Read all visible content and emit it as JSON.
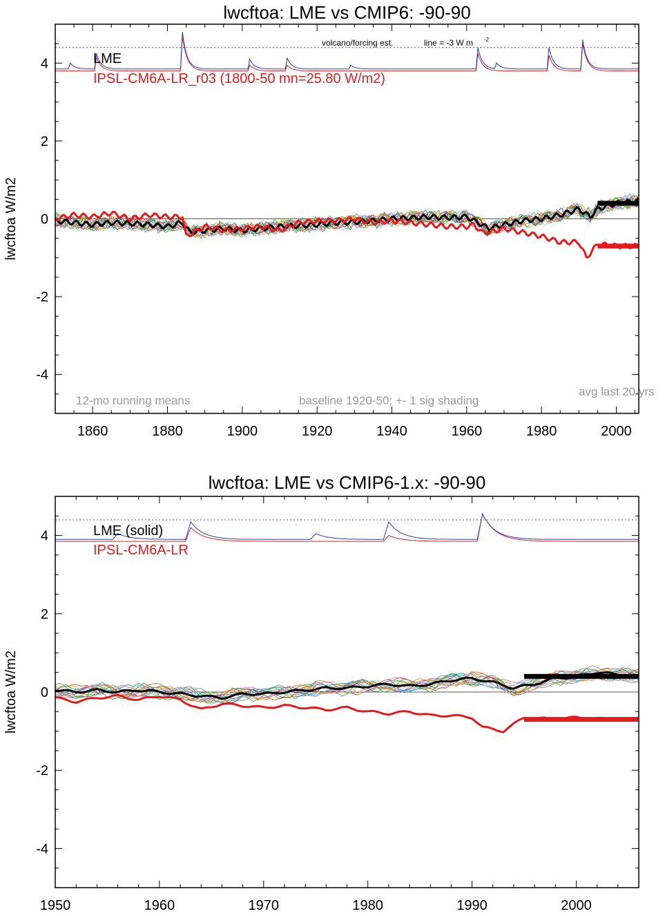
{
  "chart_data": [
    {
      "type": "line",
      "title": "lwcftoa: LME vs CMIP6: -90-90",
      "ylabel": "lwcftoa W/m2",
      "xlim": [
        1850,
        2006
      ],
      "ylim": [
        -5,
        5
      ],
      "xticks": [
        1860,
        1880,
        1900,
        1920,
        1940,
        1960,
        1980,
        2000
      ],
      "yticks": [
        -4,
        -2,
        0,
        2,
        4
      ],
      "grid": false,
      "legend": {
        "placement": "top-left",
        "entries": [
          {
            "label": "LME",
            "color": "#000000"
          },
          {
            "label": "IPSL-CM6A-LR_r03 (1800-50 mn=25.80 W/m2)",
            "color": "#e41a1c"
          }
        ]
      },
      "annotations": {
        "volcano_label": "volcano/forcing est.",
        "line_label": "line = -3 W m",
        "line_label_sup": "-2",
        "bottom_left": "12-mo running means",
        "bottom_mid": "baseline 1920-50; +- 1 sig shading",
        "bottom_right": "avg last 20 yrs"
      },
      "reference_line_y": 4.4,
      "zero_line_y": 0,
      "forcing": {
        "baseline": 3.85,
        "blue_peaks": [
          [
            1854,
            0.15
          ],
          [
            1861,
            0.4
          ],
          [
            1884,
            0.95
          ],
          [
            1902,
            0.25
          ],
          [
            1912,
            0.28
          ],
          [
            1929,
            0.1
          ],
          [
            1963,
            0.55
          ],
          [
            1968,
            0.15
          ],
          [
            1982,
            0.55
          ],
          [
            1991,
            0.75
          ]
        ],
        "red_peaks": [
          [
            1861,
            0.35
          ],
          [
            1884,
            0.9
          ],
          [
            1902,
            0.15
          ],
          [
            1912,
            0.15
          ],
          [
            1963,
            0.45
          ],
          [
            1982,
            0.4
          ],
          [
            1991,
            0.7
          ]
        ],
        "red_offset": -0.05
      },
      "series": [
        {
          "name": "LME",
          "color": "#000000",
          "x": [
            1850,
            1855,
            1860,
            1865,
            1870,
            1875,
            1880,
            1884,
            1886,
            1890,
            1895,
            1900,
            1905,
            1910,
            1915,
            1920,
            1925,
            1930,
            1935,
            1940,
            1945,
            1950,
            1955,
            1960,
            1963,
            1966,
            1970,
            1975,
            1980,
            1985,
            1990,
            1993,
            1995,
            2000,
            2005
          ],
          "y": [
            -0.05,
            -0.1,
            -0.15,
            -0.1,
            -0.12,
            -0.15,
            -0.2,
            -0.1,
            -0.35,
            -0.3,
            -0.25,
            -0.3,
            -0.25,
            -0.2,
            -0.18,
            -0.15,
            -0.1,
            -0.08,
            -0.05,
            0.0,
            0.02,
            0.05,
            0.03,
            0.05,
            -0.1,
            -0.25,
            -0.15,
            -0.05,
            0.0,
            0.1,
            0.25,
            0.05,
            0.25,
            0.4,
            0.45
          ]
        },
        {
          "name": "IPSL-CM6A-LR_r03",
          "color": "#e41a1c",
          "x": [
            1850,
            1855,
            1860,
            1865,
            1870,
            1875,
            1880,
            1884,
            1885,
            1890,
            1895,
            1900,
            1905,
            1910,
            1915,
            1920,
            1925,
            1930,
            1935,
            1940,
            1945,
            1950,
            1955,
            1960,
            1962,
            1964,
            1966,
            1970,
            1975,
            1980,
            1985,
            1990,
            1992,
            1995,
            2000,
            2005
          ],
          "y": [
            0.0,
            0.1,
            0.05,
            0.15,
            0.0,
            0.1,
            0.05,
            0.05,
            -0.45,
            -0.2,
            -0.3,
            -0.25,
            -0.2,
            -0.3,
            -0.1,
            -0.05,
            -0.05,
            0.0,
            -0.1,
            -0.05,
            -0.1,
            -0.15,
            -0.2,
            -0.2,
            -0.15,
            -0.35,
            -0.35,
            -0.25,
            -0.35,
            -0.45,
            -0.6,
            -0.6,
            -1.0,
            -0.65,
            -0.7,
            -0.7
          ]
        }
      ],
      "avg_last_20": {
        "x_range": [
          1995,
          2006
        ],
        "lme": 0.4,
        "ipsl": -0.7
      }
    },
    {
      "type": "line",
      "title": "lwcftoa: LME vs CMIP6-1.x: -90-90",
      "ylabel": "lwcftoa W/m2",
      "xlim": [
        1950,
        2006
      ],
      "ylim": [
        -5,
        5
      ],
      "xticks": [
        1950,
        1960,
        1970,
        1980,
        1990,
        2000
      ],
      "yticks": [
        -4,
        -2,
        0,
        2,
        4
      ],
      "grid": false,
      "legend": {
        "placement": "top-left",
        "entries": [
          {
            "label": "LME (solid)",
            "color": "#000000"
          },
          {
            "label": "IPSL-CM6A-LR",
            "color": "#e41a1c"
          }
        ]
      },
      "reference_line_y": 4.4,
      "zero_line_y": 0,
      "forcing": {
        "baseline": 3.9,
        "blue_peaks": [
          [
            1956,
            0.15
          ],
          [
            1963,
            0.45
          ],
          [
            1975,
            0.15
          ],
          [
            1982,
            0.45
          ],
          [
            1991,
            0.65
          ]
        ],
        "red_peaks": [
          [
            1963,
            0.35
          ],
          [
            1982,
            0.15
          ],
          [
            1991,
            0.7
          ]
        ],
        "red_offset": -0.05
      },
      "series": [
        {
          "name": "LME (solid)",
          "color": "#000000",
          "x": [
            1950,
            1952,
            1954,
            1956,
            1958,
            1960,
            1962,
            1964,
            1966,
            1968,
            1970,
            1972,
            1974,
            1976,
            1978,
            1980,
            1982,
            1984,
            1986,
            1988,
            1990,
            1992,
            1994,
            1996,
            1998,
            2000,
            2002,
            2004,
            2006
          ],
          "y": [
            0.05,
            0.0,
            0.05,
            0.0,
            0.05,
            0.0,
            -0.05,
            -0.1,
            -0.15,
            -0.05,
            -0.05,
            0.0,
            0.05,
            0.1,
            0.1,
            0.15,
            0.2,
            0.15,
            0.2,
            0.3,
            0.35,
            0.25,
            0.1,
            0.2,
            0.35,
            0.4,
            0.5,
            0.45,
            0.4
          ]
        },
        {
          "name": "IPSL-CM6A-LR",
          "color": "#e41a1c",
          "x": [
            1950,
            1952,
            1954,
            1956,
            1958,
            1960,
            1962,
            1964,
            1966,
            1968,
            1970,
            1972,
            1974,
            1976,
            1978,
            1980,
            1982,
            1984,
            1986,
            1988,
            1990,
            1991,
            1993,
            1995,
            1998,
            2000,
            2003,
            2006
          ],
          "y": [
            -0.15,
            -0.25,
            -0.15,
            -0.1,
            -0.2,
            -0.1,
            -0.2,
            -0.45,
            -0.3,
            -0.35,
            -0.4,
            -0.35,
            -0.4,
            -0.45,
            -0.4,
            -0.5,
            -0.55,
            -0.5,
            -0.6,
            -0.6,
            -0.65,
            -0.9,
            -1.0,
            -0.65,
            -0.7,
            -0.65,
            -0.7,
            -0.7
          ]
        }
      ],
      "avg_last_20": {
        "x_range": [
          1995,
          2006
        ],
        "lme": 0.4,
        "ipsl": -0.7
      }
    }
  ]
}
